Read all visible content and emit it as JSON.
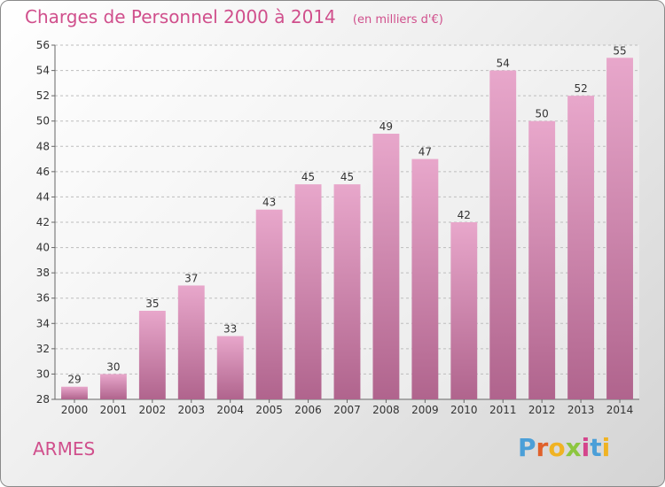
{
  "header": {
    "title": "Charges de Personnel 2000 à 2014",
    "unit": "(en milliers d'€)"
  },
  "footer": {
    "town": "ARMES",
    "logo_letters": [
      "P",
      "r",
      "o",
      "x",
      "i",
      "t",
      "i"
    ],
    "logo_colors": [
      "#4b9fd8",
      "#e0612b",
      "#f0b323",
      "#8dc63f",
      "#d4458c",
      "#4b9fd8",
      "#f0b323"
    ]
  },
  "colors": {
    "title": "#d04f8c",
    "bar_top": "#e8a7cb",
    "bar_bottom": "#b0648d"
  },
  "chart_data": {
    "type": "bar",
    "title": "Charges de Personnel 2000 à 2014",
    "subtitle": "(en milliers d'€)",
    "categories": [
      "2000",
      "2001",
      "2002",
      "2003",
      "2004",
      "2005",
      "2006",
      "2007",
      "2008",
      "2009",
      "2010",
      "2011",
      "2012",
      "2013",
      "2014"
    ],
    "values": [
      29,
      30,
      35,
      37,
      33,
      43,
      45,
      45,
      49,
      47,
      42,
      54,
      50,
      52,
      55
    ],
    "ylim": [
      28,
      56
    ],
    "yticks": [
      28,
      30,
      32,
      34,
      36,
      38,
      40,
      42,
      44,
      46,
      48,
      50,
      52,
      54,
      56
    ],
    "grid": true
  }
}
